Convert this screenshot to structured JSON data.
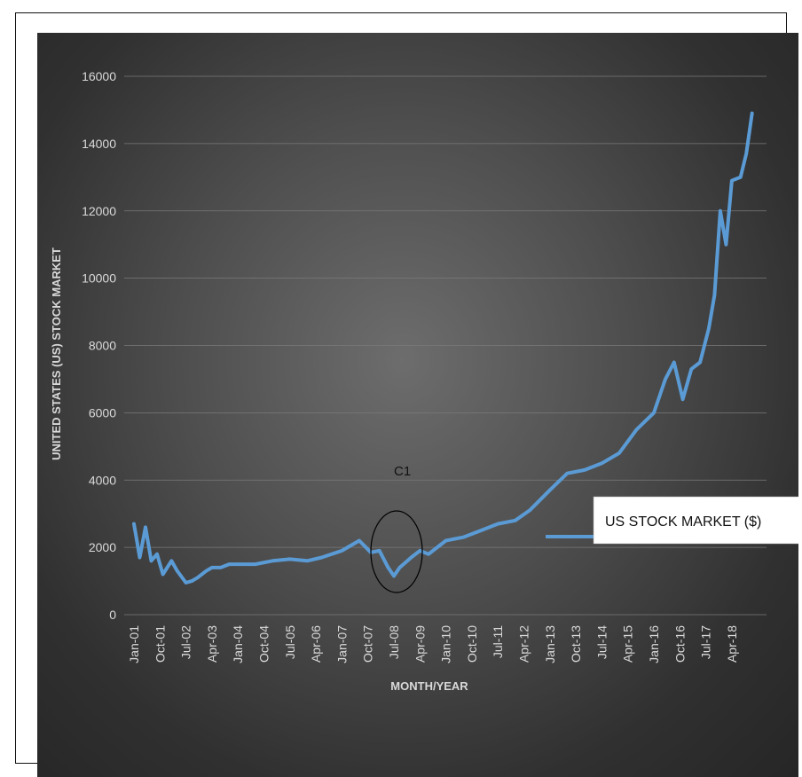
{
  "chart_data": {
    "type": "line",
    "title": "",
    "xlabel": "MONTH/YEAR",
    "ylabel": "UNITED STATES (US)  STOCK MARKET",
    "ylim": [
      0,
      16000
    ],
    "y_ticks": [
      0,
      2000,
      4000,
      6000,
      8000,
      10000,
      12000,
      14000,
      16000
    ],
    "x_tick_labels": [
      "Jan-01",
      "Oct-01",
      "Jul-02",
      "Apr-03",
      "Jan-04",
      "Oct-04",
      "Jul-05",
      "Apr-06",
      "Jan-07",
      "Oct-07",
      "Jul-08",
      "Apr-09",
      "Jan-10",
      "Oct-10",
      "Jul-11",
      "Apr-12",
      "Jan-13",
      "Oct-13",
      "Jul-14",
      "Apr-15",
      "Jan-16",
      "Oct-16",
      "Jul-17",
      "Apr-18"
    ],
    "grid": true,
    "legend_position": "right",
    "annotation": {
      "text": "C1",
      "x": "Jul-08"
    },
    "series": [
      {
        "name": "US STOCK MARKET ($)",
        "color": "#5b9bd5",
        "x": [
          "Jan-01",
          "Mar-01",
          "May-01",
          "Jul-01",
          "Sep-01",
          "Nov-01",
          "Feb-02",
          "Apr-02",
          "Jul-02",
          "Sep-02",
          "Nov-02",
          "Feb-03",
          "Apr-03",
          "Jul-03",
          "Oct-03",
          "Jan-04",
          "Jul-04",
          "Jan-05",
          "Jul-05",
          "Jan-06",
          "Jun-06",
          "Jan-07",
          "Jul-07",
          "Nov-07",
          "Feb-08",
          "May-08",
          "Jul-08",
          "Sep-08",
          "Jan-09",
          "Apr-09",
          "Jul-09",
          "Jan-10",
          "Jul-10",
          "Jan-11",
          "Jul-11",
          "Jan-12",
          "Jun-12",
          "Jan-13",
          "Jul-13",
          "Jan-14",
          "Jul-14",
          "Jan-15",
          "Jul-15",
          "Jan-16",
          "May-16",
          "Aug-16",
          "Nov-16",
          "Feb-17",
          "May-17",
          "Aug-17",
          "Oct-17",
          "Dec-17",
          "Feb-18",
          "Apr-18",
          "Jul-18",
          "Sep-18",
          "Nov-18"
        ],
        "values": [
          2700,
          1700,
          2600,
          1600,
          1800,
          1200,
          1600,
          1300,
          950,
          1000,
          1100,
          1300,
          1400,
          1400,
          1500,
          1500,
          1500,
          1600,
          1650,
          1600,
          1700,
          1900,
          2200,
          1850,
          1900,
          1400,
          1150,
          1400,
          1700,
          1900,
          1800,
          2200,
          2300,
          2500,
          2700,
          2800,
          3100,
          3700,
          4200,
          4300,
          4500,
          4800,
          5500,
          6000,
          7000,
          7500,
          6400,
          7300,
          7500,
          8500,
          9500,
          12000,
          11000,
          12900,
          13000,
          13700,
          14900
        ]
      }
    ]
  }
}
